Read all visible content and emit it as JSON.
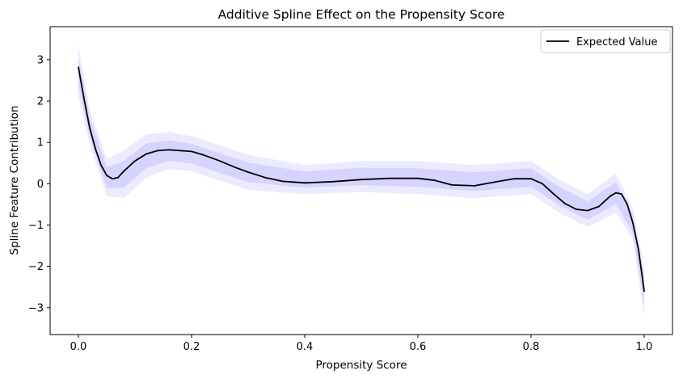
{
  "chart_data": {
    "type": "line",
    "title": "Additive Spline Effect on the Propensity Score",
    "xlabel": "Propensity Score",
    "ylabel": "Spline Feature Contribution",
    "xlim": [
      -0.05,
      1.05
    ],
    "ylim": [
      -3.65,
      3.8
    ],
    "x_ticks": [
      0.0,
      0.2,
      0.4,
      0.6,
      0.8,
      1.0
    ],
    "x_tick_labels": [
      "0.0",
      "0.2",
      "0.4",
      "0.6",
      "0.8",
      "1.0"
    ],
    "y_ticks": [
      -3,
      -2,
      -1,
      0,
      1,
      2,
      3
    ],
    "y_tick_labels": [
      "−3",
      "−2",
      "−1",
      "0",
      "1",
      "2",
      "3"
    ],
    "grid": false,
    "legend_position": "upper right",
    "series": [
      {
        "name": "Expected Value",
        "color": "#000000",
        "x": [
          0.0,
          0.01,
          0.02,
          0.03,
          0.04,
          0.05,
          0.06,
          0.07,
          0.08,
          0.1,
          0.12,
          0.14,
          0.16,
          0.18,
          0.2,
          0.22,
          0.25,
          0.28,
          0.3,
          0.33,
          0.36,
          0.4,
          0.45,
          0.5,
          0.55,
          0.6,
          0.63,
          0.66,
          0.7,
          0.74,
          0.77,
          0.8,
          0.82,
          0.84,
          0.86,
          0.88,
          0.9,
          0.92,
          0.94,
          0.95,
          0.96,
          0.97,
          0.98,
          0.99,
          1.0
        ],
        "values": [
          2.82,
          2.05,
          1.35,
          0.85,
          0.45,
          0.2,
          0.12,
          0.15,
          0.3,
          0.55,
          0.72,
          0.8,
          0.82,
          0.8,
          0.78,
          0.7,
          0.55,
          0.38,
          0.28,
          0.15,
          0.06,
          0.02,
          0.05,
          0.1,
          0.13,
          0.13,
          0.08,
          -0.03,
          -0.05,
          0.05,
          0.12,
          0.12,
          0.0,
          -0.25,
          -0.48,
          -0.62,
          -0.65,
          -0.55,
          -0.3,
          -0.22,
          -0.25,
          -0.5,
          -0.95,
          -1.6,
          -2.6
        ]
      }
    ],
    "uncertainty_band": {
      "color": "#6a5cff",
      "x": [
        0.0,
        0.02,
        0.05,
        0.08,
        0.12,
        0.16,
        0.2,
        0.3,
        0.4,
        0.5,
        0.6,
        0.7,
        0.8,
        0.85,
        0.9,
        0.95,
        0.98,
        1.0
      ],
      "lower": [
        2.1,
        0.95,
        -0.3,
        -0.35,
        0.15,
        0.35,
        0.3,
        -0.15,
        -0.25,
        -0.2,
        -0.25,
        -0.35,
        -0.25,
        -0.7,
        -1.05,
        -0.7,
        -1.35,
        -3.2
      ],
      "upper": [
        3.35,
        1.8,
        0.6,
        0.8,
        1.2,
        1.25,
        1.15,
        0.7,
        0.45,
        0.55,
        0.55,
        0.45,
        0.55,
        0.1,
        -0.25,
        0.25,
        -0.6,
        -2.0
      ]
    }
  }
}
